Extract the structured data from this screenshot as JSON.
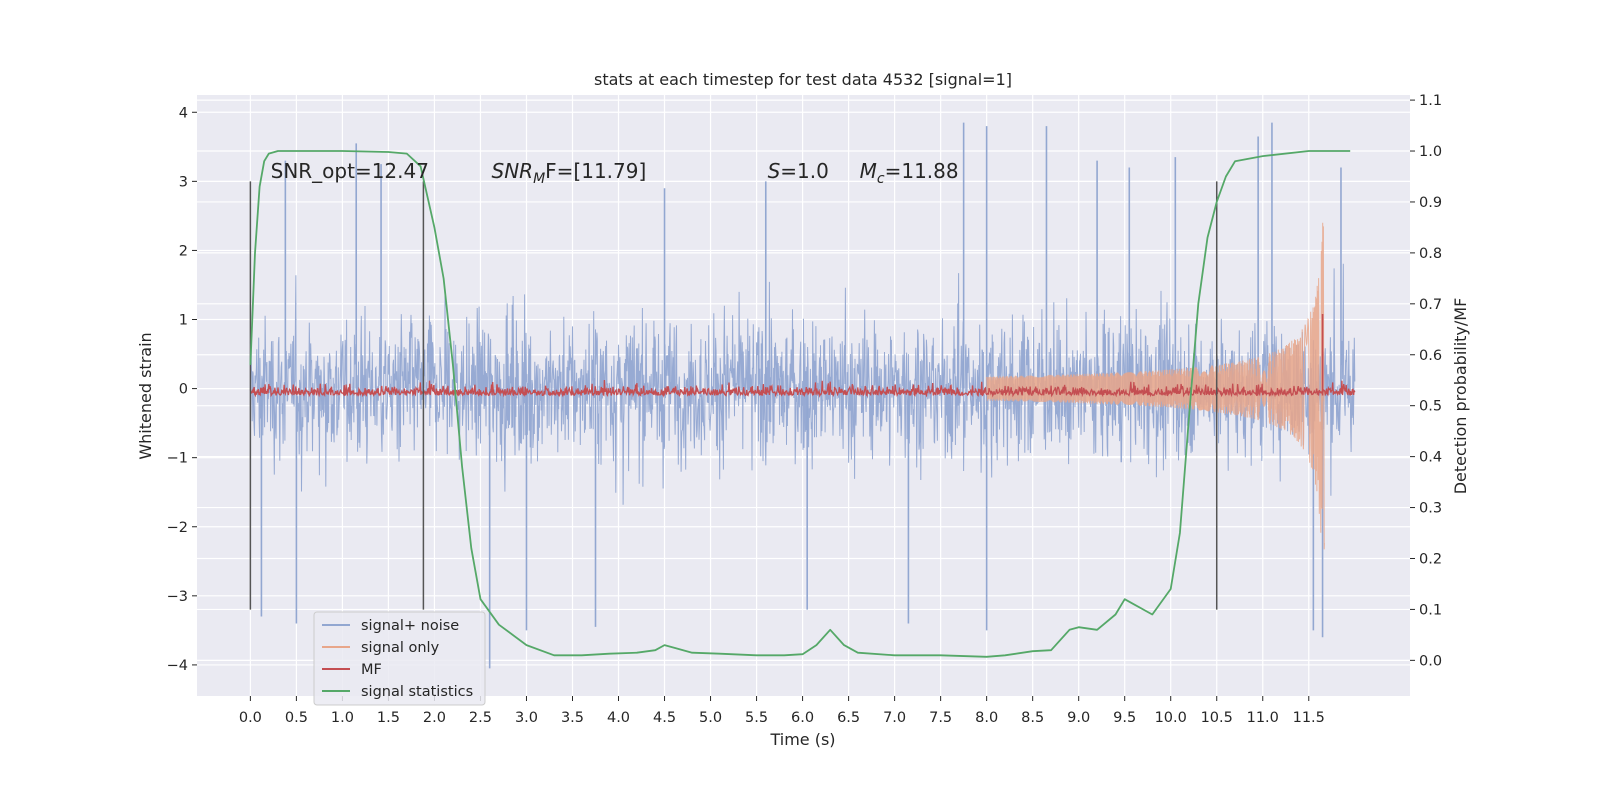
{
  "chart_data": {
    "type": "line",
    "title": "stats at each timestep for test data 4532 [signal=1]",
    "xlabel": "Time (s)",
    "ylabel": "Whitened strain",
    "y2label": "Detection probability/MF",
    "xlim": [
      -0.58,
      12.6
    ],
    "ylim": [
      -4.45,
      4.25
    ],
    "y2lim": [
      -0.07,
      1.11
    ],
    "xticks": [
      0.0,
      0.5,
      1.0,
      1.5,
      2.0,
      2.5,
      3.0,
      3.5,
      4.0,
      4.5,
      5.0,
      5.5,
      6.0,
      6.5,
      7.0,
      7.5,
      8.0,
      8.5,
      9.0,
      9.5,
      10.0,
      10.5,
      11.0,
      11.5
    ],
    "xtick_labels": [
      "0.0",
      "0.5",
      "1.0",
      "1.5",
      "2.0",
      "2.5",
      "3.0",
      "3.5",
      "4.0",
      "4.5",
      "5.0",
      "5.5",
      "6.0",
      "6.5",
      "7.0",
      "7.5",
      "8.0",
      "8.5",
      "9.0",
      "9.5",
      "10.0",
      "10.5",
      "11.0",
      "11.5"
    ],
    "yticks": [
      -4,
      -3,
      -2,
      -1,
      0,
      1,
      2,
      3,
      4
    ],
    "ytick_labels": [
      "−4",
      "−3",
      "−2",
      "−1",
      "0",
      "1",
      "2",
      "3",
      "4"
    ],
    "y2ticks": [
      0.0,
      0.1,
      0.2,
      0.3,
      0.4,
      0.5,
      0.6,
      0.7,
      0.8,
      0.9,
      1.0,
      1.1
    ],
    "y2tick_labels": [
      "0.0",
      "0.1",
      "0.2",
      "0.3",
      "0.4",
      "0.5",
      "0.6",
      "0.7",
      "0.8",
      "0.9",
      "1.0",
      "1.1"
    ],
    "grid": true,
    "legend_placement": "lower-left",
    "annotations": [
      {
        "text": "SNR_opt=12.47",
        "x": 0.22,
        "y": 3.05
      },
      {
        "text": "SNR",
        "sub": "M",
        "suffix": "F=[11.79]",
        "italic": true,
        "x": 2.62,
        "y": 3.05
      },
      {
        "text": "S",
        "suffix": "=1.0",
        "italic": true,
        "x": 5.62,
        "y": 3.05
      },
      {
        "text": "M",
        "sub": "c",
        "suffix": "=11.88",
        "italic": true,
        "x": 6.62,
        "y": 3.05
      }
    ],
    "vlines": [
      {
        "x": 0.0,
        "ymin": -3.2,
        "ymax": 3.0
      },
      {
        "x": 1.88,
        "ymin": -3.2,
        "ymax": 3.0
      },
      {
        "x": 10.5,
        "ymin": -3.2,
        "ymax": 3.0
      }
    ],
    "series": [
      {
        "name": "signal+ noise",
        "color": "#92a7d1",
        "x_range": [
          0.0,
          12.0
        ],
        "envelope_typical": 1.8,
        "peaks": [
          [
            0.38,
            3.3
          ],
          [
            1.15,
            3.55
          ],
          [
            1.42,
            3.25
          ],
          [
            3.0,
            -3.5
          ],
          [
            3.75,
            -3.45
          ],
          [
            4.5,
            2.9
          ],
          [
            5.6,
            3.0
          ],
          [
            6.05,
            -3.2
          ],
          [
            7.15,
            -3.4
          ],
          [
            7.75,
            3.85
          ],
          [
            8.0,
            3.8
          ],
          [
            8.0,
            -3.5
          ],
          [
            8.65,
            3.8
          ],
          [
            9.2,
            3.3
          ],
          [
            9.55,
            3.2
          ],
          [
            10.05,
            3.35
          ],
          [
            10.95,
            3.65
          ],
          [
            11.1,
            3.85
          ],
          [
            11.55,
            -3.5
          ],
          [
            11.65,
            -3.6
          ],
          [
            11.85,
            3.2
          ],
          [
            2.6,
            -4.05
          ],
          [
            0.12,
            -3.3
          ],
          [
            0.5,
            -3.4
          ]
        ]
      },
      {
        "name": "signal only",
        "color": "#e8a68a",
        "x_range": [
          8.0,
          11.67
        ],
        "chirp_peak_amplitude": 2.4
      },
      {
        "name": "MF",
        "color": "#c44e52",
        "axis": "y2",
        "baseline": 0.52,
        "spike": [
          11.65,
          0.68
        ]
      },
      {
        "name": "signal statistics",
        "color": "#55a868",
        "axis": "y2",
        "x": [
          0.0,
          0.05,
          0.1,
          0.15,
          0.2,
          0.3,
          0.5,
          1.0,
          1.5,
          1.7,
          1.85,
          2.0,
          2.1,
          2.2,
          2.3,
          2.4,
          2.5,
          2.7,
          3.0,
          3.3,
          3.6,
          3.9,
          4.2,
          4.4,
          4.5,
          4.6,
          4.8,
          5.1,
          5.5,
          5.8,
          6.0,
          6.15,
          6.3,
          6.45,
          6.6,
          7.0,
          7.5,
          8.0,
          8.2,
          8.5,
          8.7,
          8.9,
          9.0,
          9.2,
          9.4,
          9.5,
          9.6,
          9.8,
          10.0,
          10.1,
          10.2,
          10.3,
          10.4,
          10.5,
          10.6,
          10.7,
          11.0,
          11.5,
          11.95
        ],
        "y": [
          0.58,
          0.8,
          0.93,
          0.98,
          0.995,
          1.0,
          1.0,
          1.0,
          0.998,
          0.995,
          0.97,
          0.85,
          0.75,
          0.58,
          0.38,
          0.22,
          0.12,
          0.07,
          0.03,
          0.01,
          0.01,
          0.013,
          0.015,
          0.02,
          0.03,
          0.025,
          0.015,
          0.013,
          0.01,
          0.01,
          0.012,
          0.03,
          0.06,
          0.03,
          0.015,
          0.01,
          0.01,
          0.007,
          0.01,
          0.018,
          0.02,
          0.06,
          0.065,
          0.06,
          0.09,
          0.12,
          0.11,
          0.09,
          0.14,
          0.25,
          0.48,
          0.7,
          0.83,
          0.9,
          0.95,
          0.98,
          0.99,
          1.0,
          1.0
        ]
      }
    ]
  }
}
